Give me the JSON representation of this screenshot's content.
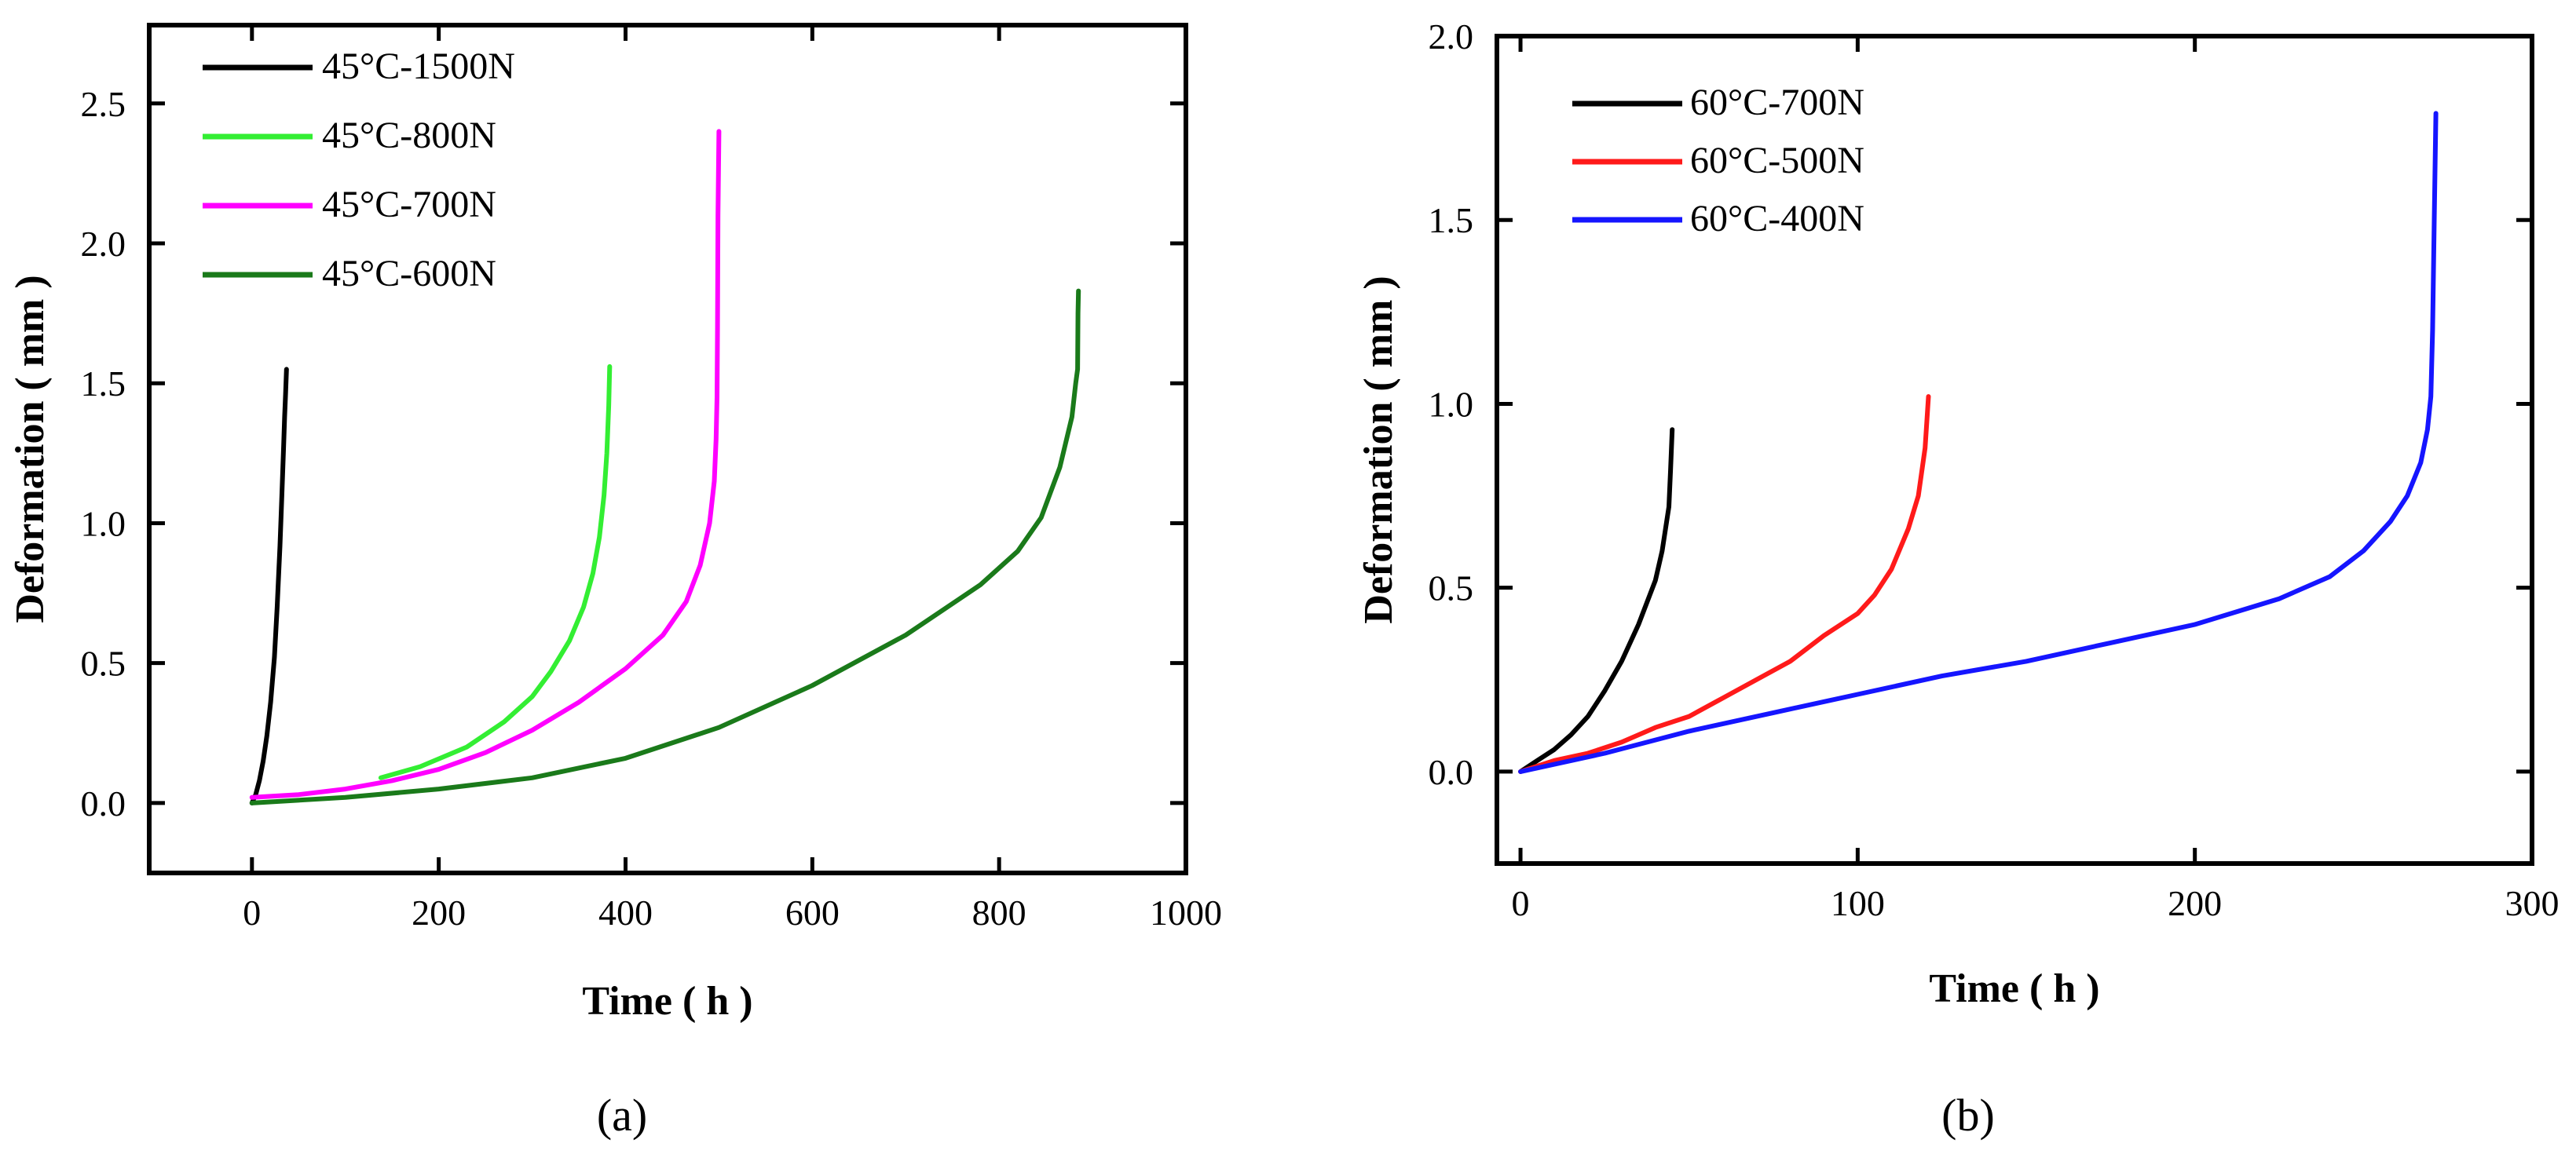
{
  "chart_data": [
    {
      "type": "line",
      "panel_label": "(a)",
      "xlabel": "Time ( h )",
      "ylabel": "Deformation ( mm )",
      "xlim": [
        -110,
        1000
      ],
      "ylim": [
        -0.25,
        2.78
      ],
      "xticks": [
        0,
        200,
        400,
        600,
        800,
        1000
      ],
      "yticks": [
        0.0,
        0.5,
        1.0,
        1.5,
        2.0,
        2.5
      ],
      "xtick_labels": [
        "0",
        "200",
        "400",
        "600",
        "800",
        "1000"
      ],
      "ytick_labels": [
        "0.0",
        "0.5",
        "1.0",
        "1.5",
        "2.0",
        "2.5"
      ],
      "legend": "top-left",
      "grid": false,
      "series": [
        {
          "name": "45°C-1500N",
          "color": "#000000",
          "x": [
            0,
            4,
            8,
            12,
            16,
            20,
            24,
            27,
            30,
            32,
            34,
            35,
            36,
            37
          ],
          "y": [
            0.0,
            0.03,
            0.08,
            0.15,
            0.24,
            0.36,
            0.52,
            0.7,
            0.92,
            1.1,
            1.28,
            1.38,
            1.46,
            1.55
          ]
        },
        {
          "name": "45°C-800N",
          "color": "#33ee33",
          "x": [
            138,
            180,
            230,
            270,
            300,
            320,
            340,
            355,
            365,
            372,
            377,
            380,
            382,
            383
          ],
          "y": [
            0.09,
            0.13,
            0.2,
            0.29,
            0.38,
            0.47,
            0.58,
            0.7,
            0.82,
            0.95,
            1.1,
            1.25,
            1.42,
            1.56
          ]
        },
        {
          "name": "45°C-700N",
          "color": "#ff00ff",
          "x": [
            0,
            50,
            100,
            150,
            200,
            250,
            300,
            350,
            400,
            440,
            465,
            480,
            490,
            495,
            497,
            498,
            498.5,
            499,
            500
          ],
          "y": [
            0.02,
            0.03,
            0.05,
            0.08,
            0.12,
            0.18,
            0.26,
            0.36,
            0.48,
            0.6,
            0.72,
            0.85,
            1.0,
            1.15,
            1.3,
            1.45,
            1.7,
            2.1,
            2.4
          ]
        },
        {
          "name": "45°C-600N",
          "color": "#1a7a1a",
          "x": [
            0,
            100,
            200,
            300,
            400,
            500,
            600,
            700,
            780,
            820,
            845,
            865,
            878,
            882,
            884,
            884.5,
            885
          ],
          "y": [
            0.0,
            0.02,
            0.05,
            0.09,
            0.16,
            0.27,
            0.42,
            0.6,
            0.78,
            0.9,
            1.02,
            1.2,
            1.38,
            1.5,
            1.55,
            1.75,
            1.83
          ]
        }
      ]
    },
    {
      "type": "line",
      "panel_label": "(b)",
      "xlabel": "Time ( h )",
      "ylabel": "Deformation ( mm )",
      "xlim": [
        -7,
        300
      ],
      "ylim": [
        -0.25,
        2.0
      ],
      "xticks": [
        0,
        100,
        200,
        300
      ],
      "yticks": [
        0.0,
        0.5,
        1.0,
        1.5,
        2.0
      ],
      "xtick_labels": [
        "0",
        "100",
        "200",
        "300"
      ],
      "ytick_labels": [
        "0.0",
        "0.5",
        "1.0",
        "1.5",
        "2.0"
      ],
      "legend": "top-left",
      "grid": false,
      "series": [
        {
          "name": "60°C-700N",
          "color": "#000000",
          "x": [
            0,
            5,
            10,
            15,
            20,
            25,
            30,
            35,
            40,
            42,
            43,
            44,
            44.5,
            45
          ],
          "y": [
            0.0,
            0.03,
            0.06,
            0.1,
            0.15,
            0.22,
            0.3,
            0.4,
            0.52,
            0.6,
            0.66,
            0.72,
            0.82,
            0.93
          ]
        },
        {
          "name": "60°C-500N",
          "color": "#ff1a1a",
          "x": [
            0,
            10,
            20,
            30,
            40,
            50,
            60,
            70,
            80,
            90,
            100,
            105,
            110,
            115,
            118,
            120,
            121
          ],
          "y": [
            0.0,
            0.03,
            0.05,
            0.08,
            0.12,
            0.15,
            0.2,
            0.25,
            0.3,
            0.37,
            0.43,
            0.48,
            0.55,
            0.66,
            0.75,
            0.88,
            1.02
          ]
        },
        {
          "name": "60°C-400N",
          "color": "#1515ff",
          "x": [
            0,
            25,
            50,
            75,
            100,
            125,
            150,
            175,
            200,
            225,
            240,
            250,
            258,
            263,
            267,
            269,
            270,
            270.5,
            271,
            271.5
          ],
          "y": [
            0.0,
            0.05,
            0.11,
            0.16,
            0.21,
            0.26,
            0.3,
            0.35,
            0.4,
            0.47,
            0.53,
            0.6,
            0.68,
            0.75,
            0.84,
            0.93,
            1.02,
            1.2,
            1.5,
            1.79
          ]
        }
      ]
    }
  ]
}
